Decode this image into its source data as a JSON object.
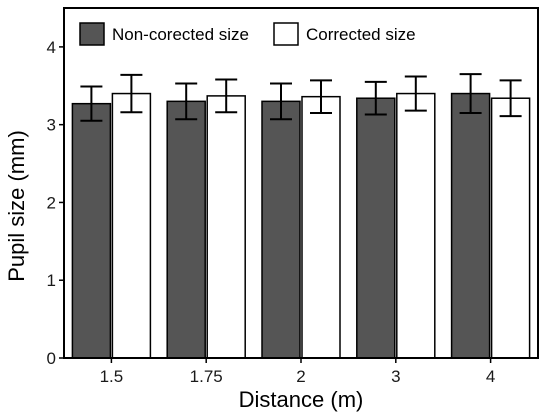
{
  "chart_data": {
    "type": "bar",
    "title": "",
    "xlabel": "Distance (m)",
    "ylabel": "Pupil size (mm)",
    "ylim": [
      0,
      4.5
    ],
    "yticks": [
      "0",
      "1",
      "2",
      "3",
      "4"
    ],
    "categories": [
      "1.5",
      "1.75",
      "2",
      "3",
      "4"
    ],
    "series": [
      {
        "name": "Non-corected size",
        "color": "#555555",
        "values": [
          3.27,
          3.3,
          3.3,
          3.34,
          3.4
        ],
        "error": [
          0.22,
          0.23,
          0.23,
          0.21,
          0.25
        ]
      },
      {
        "name": "Corrected size",
        "color": "#ffffff",
        "values": [
          3.4,
          3.37,
          3.36,
          3.4,
          3.34
        ],
        "error": [
          0.24,
          0.21,
          0.21,
          0.22,
          0.23
        ]
      }
    ],
    "legend_position": "top-left",
    "grid": false
  }
}
